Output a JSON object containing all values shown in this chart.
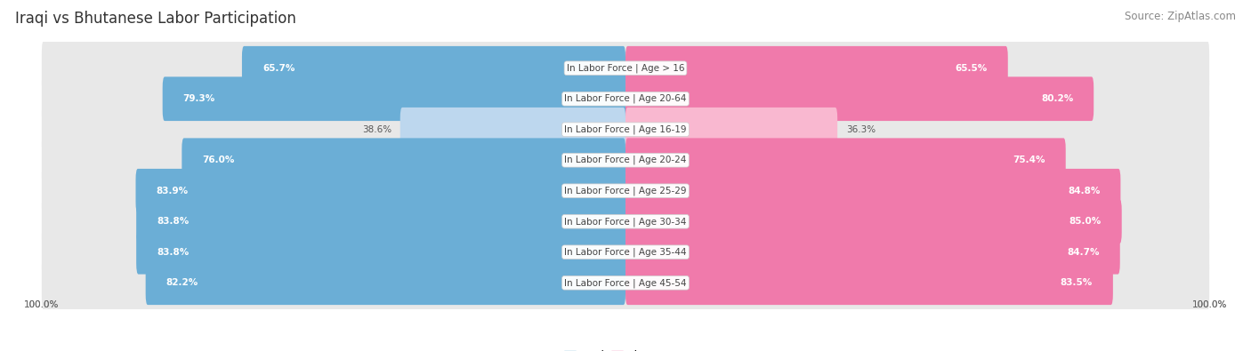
{
  "title": "Iraqi vs Bhutanese Labor Participation",
  "source": "Source: ZipAtlas.com",
  "categories": [
    "In Labor Force | Age > 16",
    "In Labor Force | Age 20-64",
    "In Labor Force | Age 16-19",
    "In Labor Force | Age 20-24",
    "In Labor Force | Age 25-29",
    "In Labor Force | Age 30-34",
    "In Labor Force | Age 35-44",
    "In Labor Force | Age 45-54"
  ],
  "iraqi_values": [
    65.7,
    79.3,
    38.6,
    76.0,
    83.9,
    83.8,
    83.8,
    82.2
  ],
  "bhutanese_values": [
    65.5,
    80.2,
    36.3,
    75.4,
    84.8,
    85.0,
    84.7,
    83.5
  ],
  "iraqi_color": "#6baed6",
  "iraqi_color_light": "#bdd7ee",
  "bhutanese_color": "#f07aab",
  "bhutanese_color_light": "#f9b8d0",
  "row_bg_color": "#e8e8e8",
  "max_value": 100.0,
  "bar_height": 0.72,
  "title_fontsize": 12,
  "source_fontsize": 8.5,
  "label_fontsize": 7.5,
  "value_fontsize": 7.5,
  "legend_fontsize": 9
}
